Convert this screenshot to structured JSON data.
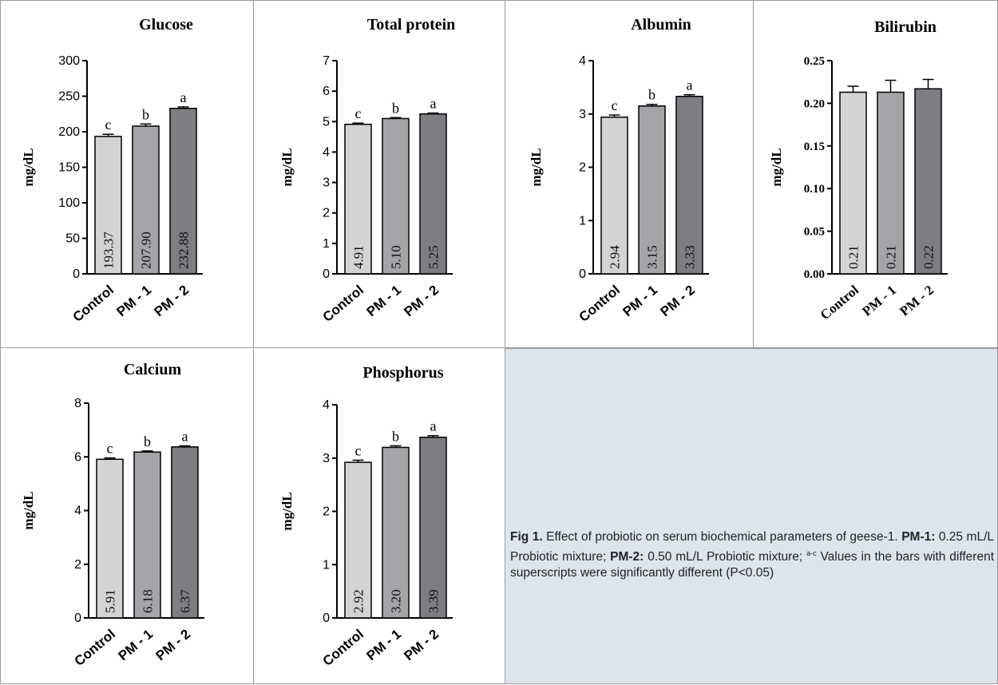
{
  "colors": {
    "bar1": "#d2d3d5",
    "bar2": "#a3a5a8",
    "bar3": "#7c7e81",
    "axis": "#000000"
  },
  "chart_data": [
    {
      "type": "bar",
      "title": "Glucose",
      "ylabel": "mg/dL",
      "ylim": [
        0,
        300
      ],
      "yticks": [
        "0",
        "50",
        "100",
        "150",
        "200",
        "250",
        "300"
      ],
      "categories": [
        "Control",
        "PM - 1",
        "PM - 2"
      ],
      "values": [
        193.37,
        207.9,
        232.88
      ],
      "errors": [
        3,
        3,
        2
      ],
      "value_labels": [
        "193.37",
        "207.90",
        "232.88"
      ],
      "letters": [
        "c",
        "b",
        "a"
      ]
    },
    {
      "type": "bar",
      "title": "Total protein",
      "ylabel": "mg/dL",
      "ylim": [
        0,
        7
      ],
      "yticks": [
        "0",
        "1",
        "2",
        "3",
        "4",
        "5",
        "6",
        "7"
      ],
      "categories": [
        "Control",
        "PM - 1",
        "PM - 2"
      ],
      "values": [
        4.91,
        5.1,
        5.25
      ],
      "errors": [
        0.04,
        0.03,
        0.03
      ],
      "value_labels": [
        "4.91",
        "5.10",
        "5.25"
      ],
      "letters": [
        "c",
        "b",
        "a"
      ]
    },
    {
      "type": "bar",
      "title": "Albumin",
      "ylabel": "mg/dL",
      "ylim": [
        0,
        4
      ],
      "yticks": [
        "0",
        "1",
        "2",
        "3",
        "4"
      ],
      "categories": [
        "Control",
        "PM - 1",
        "PM - 2"
      ],
      "values": [
        2.94,
        3.15,
        3.33
      ],
      "errors": [
        0.04,
        0.03,
        0.03
      ],
      "value_labels": [
        "2.94",
        "3.15",
        "3.33"
      ],
      "letters": [
        "c",
        "b",
        "a"
      ]
    },
    {
      "type": "bar",
      "title": "Bilirubin",
      "ylabel": "mg/dL",
      "ylim": [
        0,
        0.25
      ],
      "yticks": [
        "0.00",
        "0.05",
        "0.10",
        "0.15",
        "0.20",
        "0.25"
      ],
      "categories": [
        "Control",
        "PM - 1",
        "PM - 2"
      ],
      "values": [
        0.213,
        0.213,
        0.217
      ],
      "errors": [
        0.007,
        0.014,
        0.011
      ],
      "value_labels": [
        "0.21",
        "0.21",
        "0.22"
      ],
      "letters": [
        "",
        "",
        ""
      ]
    },
    {
      "type": "bar",
      "title": "Calcium",
      "ylabel": "mg/dL",
      "ylim": [
        0,
        8
      ],
      "yticks": [
        "0",
        "2",
        "4",
        "6",
        "8"
      ],
      "categories": [
        "Control",
        "PM - 1",
        "PM - 2"
      ],
      "values": [
        5.91,
        6.18,
        6.37
      ],
      "errors": [
        0.05,
        0.04,
        0.04
      ],
      "value_labels": [
        "5.91",
        "6.18",
        "6.37"
      ],
      "letters": [
        "c",
        "b",
        "a"
      ]
    },
    {
      "type": "bar",
      "title": "Phosphorus",
      "ylabel": "mg/dL",
      "ylim": [
        0,
        4
      ],
      "yticks": [
        "0",
        "1",
        "2",
        "3",
        "4"
      ],
      "categories": [
        "Control",
        "PM - 1",
        "PM - 2"
      ],
      "values": [
        2.92,
        3.2,
        3.39
      ],
      "errors": [
        0.04,
        0.03,
        0.03
      ],
      "value_labels": [
        "2.92",
        "3.20",
        "3.39"
      ],
      "letters": [
        "c",
        "b",
        "a"
      ]
    }
  ],
  "caption": {
    "fig_label": "Fig 1.",
    "text1": " Effect of probiotic on serum biochemical parameters of geese-1. ",
    "pm1_label": "PM-1:",
    "text2": " 0.25 mL/L Probiotic mixture; ",
    "pm2_label": "PM-2:",
    "text3": " 0.50 mL/L Probiotic mixture; ",
    "sup": "a-c",
    "text4": " Values in the bars with different superscripts were significantly different (P<0.05)"
  }
}
